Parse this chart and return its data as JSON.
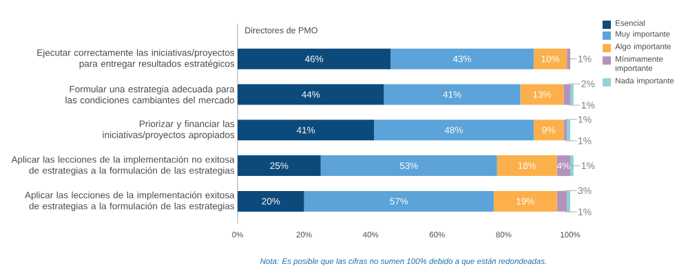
{
  "chart_data": {
    "type": "bar",
    "orientation": "horizontal",
    "stacked": true,
    "title": "Directores de PMO",
    "categories": [
      "Ejecutar correctamente las iniciativas/proyectos para entregar resultados estratégicos",
      "Formular una estrategia adecuada para las condiciones cambiantes del mercado",
      "Priorizar y financiar las iniciativas/proyectos apropiados",
      "Aplicar las lecciones de la implementación no exitosa de estrategias a la formulación de las estrategias",
      "Aplicar las lecciones de la implementación exitosa de estrategias a la formulación de las estrategias"
    ],
    "series": [
      {
        "name": "Esencial",
        "color": "#0d4a7c",
        "values": [
          46,
          44,
          41,
          25,
          20
        ],
        "value_labels": [
          "46%",
          "44%",
          "41%",
          "25%",
          "20%"
        ]
      },
      {
        "name": "Muy importante",
        "color": "#5ba3d9",
        "values": [
          43,
          41,
          48,
          53,
          57
        ],
        "value_labels": [
          "43%",
          "41%",
          "48%",
          "53%",
          "57%"
        ]
      },
      {
        "name": "Algo importante",
        "color": "#fbb04c",
        "values": [
          10,
          13,
          9,
          18,
          19
        ],
        "value_labels": [
          "10%",
          "13%",
          "9%",
          "18%",
          "19%"
        ]
      },
      {
        "name": "Mínimamente importante",
        "color": "#b393be",
        "values": [
          1,
          2,
          1,
          4,
          3
        ],
        "value_labels": [
          "1%",
          "2%",
          "1%",
          "4%",
          "3%"
        ]
      },
      {
        "name": "Nada importante",
        "color": "#8fd3d4",
        "values": [
          null,
          1,
          1,
          1,
          1
        ],
        "value_labels": [
          null,
          "1%",
          "1%",
          "1%",
          "1%"
        ]
      }
    ],
    "xlim": [
      0,
      101
    ],
    "xticks": [
      {
        "value": 0,
        "label": "0%"
      },
      {
        "value": 20,
        "label": "20%"
      },
      {
        "value": 40,
        "label": "40%"
      },
      {
        "value": 60,
        "label": "60%"
      },
      {
        "value": 80,
        "label": "80%"
      },
      {
        "value": 100,
        "label": "100%"
      }
    ],
    "legend": "right",
    "grid": false,
    "annotations": [
      "Nota: Es posible que las cifras no sumen 100% debido a que están redondeadas."
    ]
  }
}
